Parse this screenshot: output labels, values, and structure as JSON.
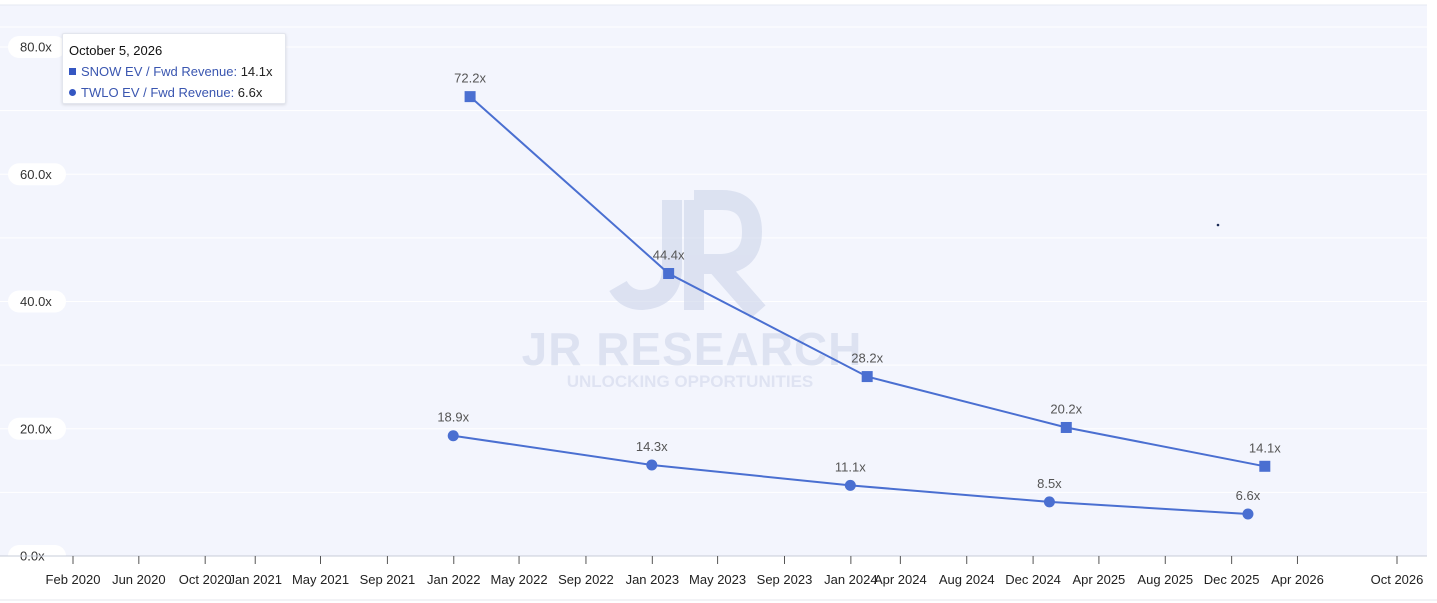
{
  "chart_data": {
    "type": "line",
    "title": "",
    "xlabel": "",
    "ylabel": "",
    "ylim": [
      0,
      80
    ],
    "yticks": [
      "0.0x",
      "20.0x",
      "40.0x",
      "60.0x",
      "80.0x"
    ],
    "xticks": [
      "Feb 2020",
      "Jun 2020",
      "Oct 2020",
      "Jan 2021",
      "May 2021",
      "Sep 2021",
      "Jan 2022",
      "May 2022",
      "Sep 2022",
      "Jan 2023",
      "May 2023",
      "Sep 2023",
      "Jan 2024",
      "Apr 2024",
      "Aug 2024",
      "Dec 2024",
      "Apr 2025",
      "Aug 2025",
      "Dec 2025",
      "Apr 2026",
      "Oct 2026"
    ],
    "grid": true,
    "series": [
      {
        "name": "SNOW EV / Fwd Revenue",
        "marker": "square",
        "color": "#4a6fd1",
        "points": [
          {
            "x": "2022-01-31",
            "y": 72.2,
            "label": "72.2x"
          },
          {
            "x": "2023-01-31",
            "y": 44.4,
            "label": "44.4x"
          },
          {
            "x": "2024-01-31",
            "y": 28.2,
            "label": "28.2x"
          },
          {
            "x": "2025-01-31",
            "y": 20.2,
            "label": "20.2x"
          },
          {
            "x": "2026-01-31",
            "y": 14.1,
            "label": "14.1x"
          }
        ]
      },
      {
        "name": "TWLO EV / Fwd Revenue",
        "marker": "circle",
        "color": "#4a6fd1",
        "points": [
          {
            "x": "2021-12-31",
            "y": 18.9,
            "label": "18.9x"
          },
          {
            "x": "2022-12-31",
            "y": 14.3,
            "label": "14.3x"
          },
          {
            "x": "2023-12-31",
            "y": 11.1,
            "label": "11.1x"
          },
          {
            "x": "2024-12-31",
            "y": 8.5,
            "label": "8.5x"
          },
          {
            "x": "2025-12-31",
            "y": 6.6,
            "label": "6.6x"
          }
        ]
      }
    ]
  },
  "tooltip": {
    "date": "October 5, 2026",
    "rows": [
      {
        "name": "SNOW EV / Fwd Revenue",
        "value": "14.1x"
      },
      {
        "name": "TWLO EV / Fwd Revenue",
        "value": "6.6x"
      }
    ]
  },
  "watermark": {
    "title": "JR RESEARCH",
    "tagline": "UNLOCKING OPPORTUNITIES"
  }
}
